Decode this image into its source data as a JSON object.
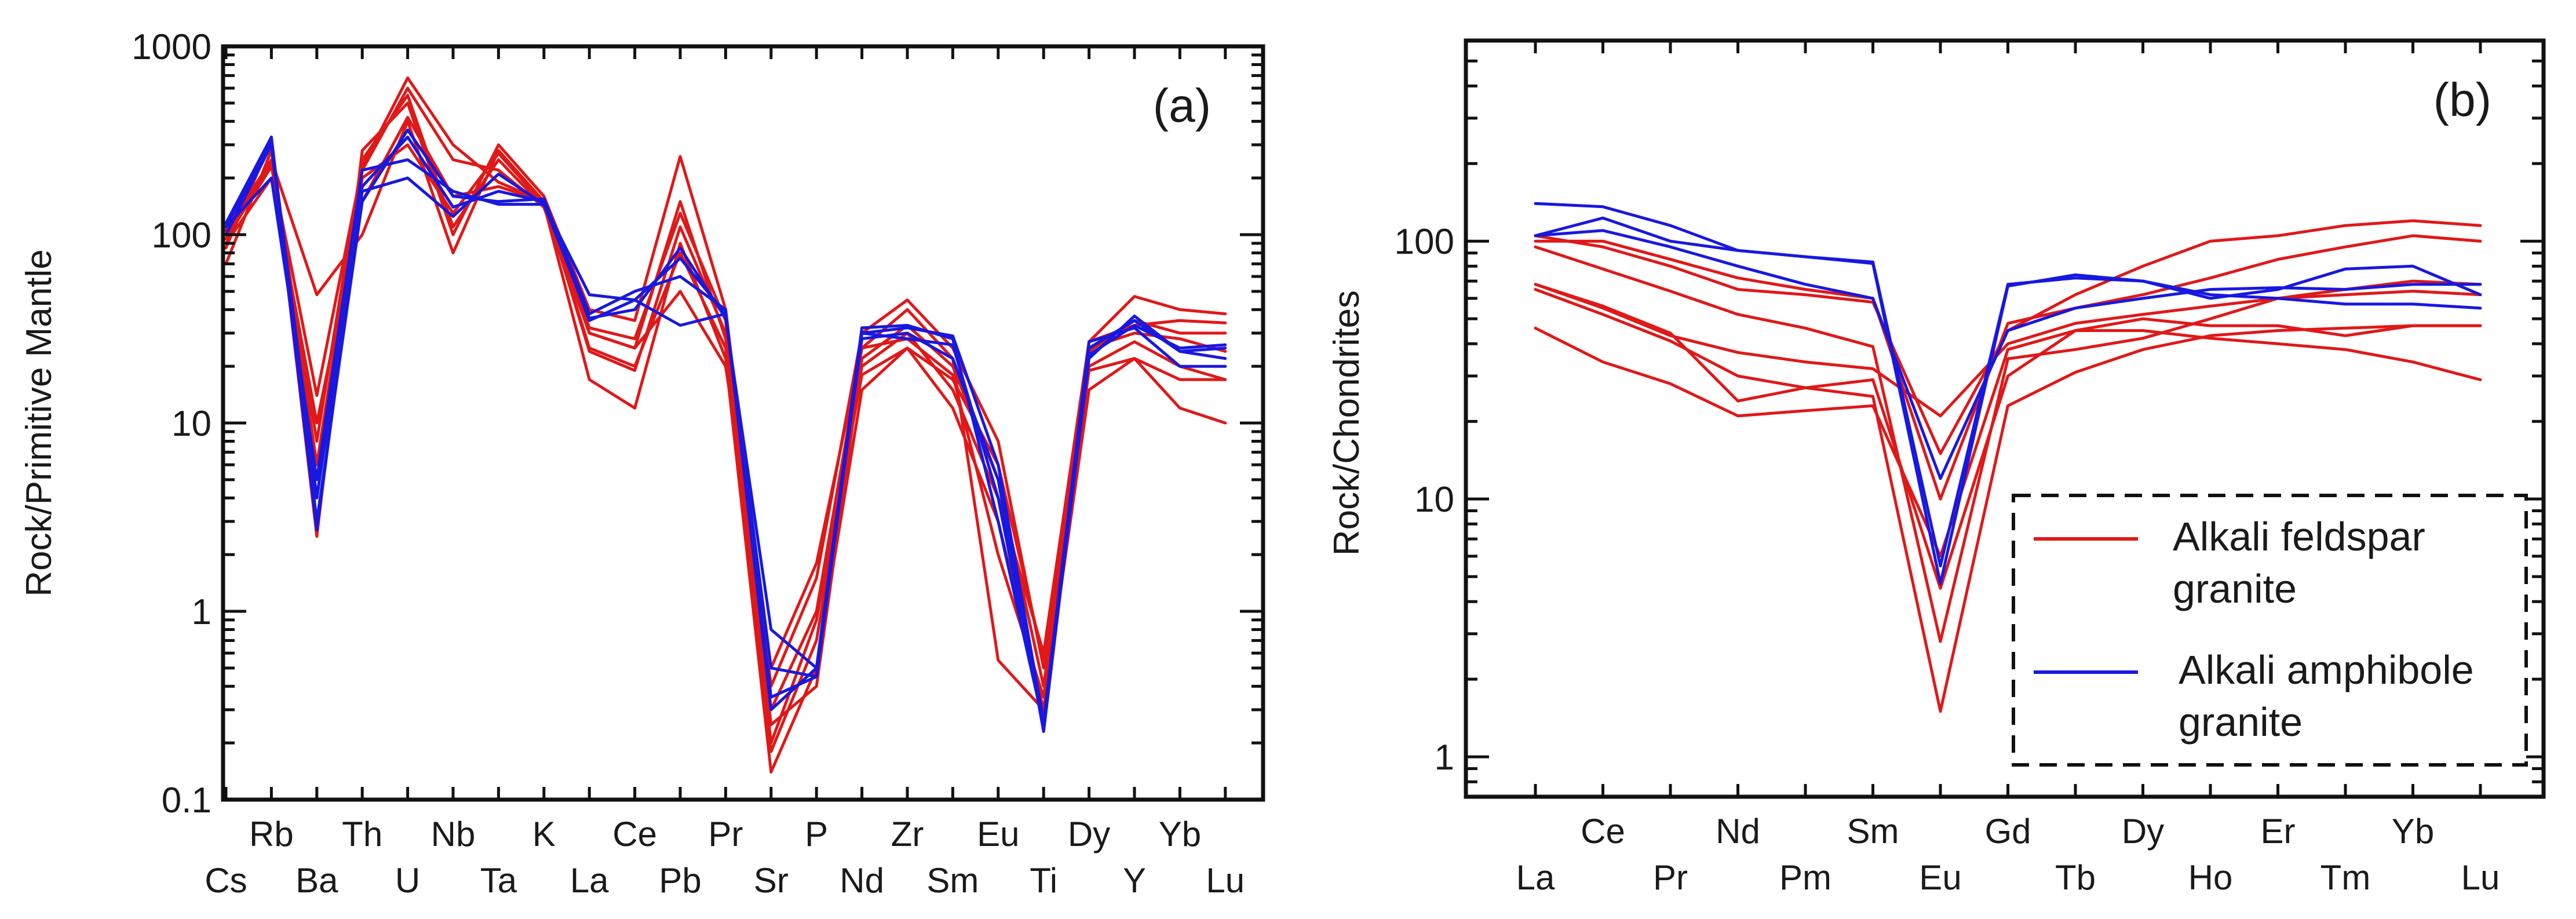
{
  "chart_data": [
    {
      "type": "line",
      "panel_label": "(a)",
      "ylabel": "Rock/Primitive Mantle",
      "yscale": "log",
      "ylim": [
        0.1,
        1000
      ],
      "yticks": [
        "0.1",
        "1",
        "10",
        "100",
        "1000"
      ],
      "categories": [
        "Cs",
        "Rb",
        "Ba",
        "Th",
        "U",
        "Nb",
        "Ta",
        "K",
        "La",
        "Ce",
        "Pb",
        "Pr",
        "Sr",
        "P",
        "Nd",
        "Zr",
        "Sm",
        "Eu",
        "Ti",
        "Dy",
        "Y",
        "Yb",
        "Lu"
      ],
      "series": [
        {
          "name": "Alkali feldspar granite 1",
          "color": "#e01818",
          "values": [
            95,
            230,
            14,
            230,
            680,
            300,
            190,
            150,
            24,
            19,
            110,
            30,
            0.18,
            0.7,
            20,
            30,
            15,
            4,
            0.6,
            27,
            47,
            40,
            38
          ]
        },
        {
          "name": "Alkali feldspar granite 2",
          "color": "#e01818",
          "values": [
            85,
            320,
            4,
            200,
            300,
            130,
            270,
            145,
            17,
            12,
            90,
            22,
            0.14,
            0.5,
            15,
            25,
            12,
            3,
            0.3,
            20,
            27,
            20,
            17
          ]
        },
        {
          "name": "Alkali feldspar granite 3",
          "color": "#e01818",
          "values": [
            110,
            300,
            2.5,
            280,
            500,
            100,
            300,
            160,
            40,
            35,
            260,
            40,
            0.4,
            1.5,
            30,
            45,
            25,
            8,
            0.5,
            25,
            30,
            28,
            24
          ]
        },
        {
          "name": "Alkali feldspar granite 4",
          "color": "#e01818",
          "values": [
            70,
            280,
            6,
            220,
            600,
            250,
            220,
            140,
            30,
            25,
            150,
            28,
            0.25,
            0.4,
            22,
            33,
            20,
            5,
            0.4,
            24,
            35,
            30,
            30
          ]
        },
        {
          "name": "Alkali feldspar granite 5",
          "color": "#e01818",
          "values": [
            90,
            200,
            10,
            150,
            420,
            160,
            180,
            150,
            25,
            20,
            80,
            25,
            0.3,
            1,
            25,
            28,
            18,
            2,
            0.35,
            19,
            22,
            12,
            10
          ]
        },
        {
          "name": "Alkali feldspar granite 6",
          "color": "#e01818",
          "values": [
            105,
            250,
            48,
            100,
            400,
            80,
            280,
            150,
            30,
            25,
            50,
            20,
            0.5,
            1.8,
            25,
            40,
            22,
            0.55,
            0.3,
            15,
            22,
            17,
            17
          ]
        },
        {
          "name": "Alkali feldspar granite 7",
          "color": "#e01818",
          "values": [
            100,
            240,
            8,
            250,
            550,
            110,
            250,
            140,
            32,
            28,
            130,
            35,
            0.2,
            0.9,
            18,
            25,
            17,
            6,
            0.55,
            27,
            33,
            35,
            34
          ]
        },
        {
          "name": "Alkali amphibole granite 1",
          "color": "#1818e0",
          "values": [
            115,
            330,
            3,
            150,
            360,
            160,
            150,
            155,
            38,
            50,
            60,
            40,
            0.3,
            0.5,
            32,
            33,
            28,
            3,
            0.25,
            22,
            37,
            24,
            22
          ]
        },
        {
          "name": "Alkali amphibole granite 2",
          "color": "#1818e0",
          "values": [
            100,
            300,
            2.7,
            180,
            330,
            140,
            170,
            150,
            35,
            45,
            75,
            38,
            0.5,
            0.45,
            30,
            28,
            26,
            4,
            0.24,
            25,
            35,
            24,
            25
          ]
        },
        {
          "name": "Alkali amphibole granite 3",
          "color": "#1818e0",
          "values": [
            110,
            200,
            5,
            220,
            250,
            170,
            145,
            145,
            36,
            40,
            85,
            36,
            0.8,
            0.5,
            28,
            30,
            22,
            5,
            0.23,
            23,
            33,
            25,
            26
          ]
        },
        {
          "name": "Alkali amphibole granite 4",
          "color": "#1818e0",
          "values": [
            110,
            310,
            4,
            170,
            200,
            125,
            210,
            145,
            48,
            45,
            33,
            38,
            0.35,
            0.45,
            30,
            32,
            29,
            6,
            0.26,
            27,
            32,
            20,
            20
          ]
        }
      ]
    },
    {
      "type": "line",
      "panel_label": "(b)",
      "ylabel": "Rock/Chondrites",
      "yscale": "log",
      "ylim": [
        0.7,
        600
      ],
      "yticks": [
        "1",
        "10",
        "100"
      ],
      "categories": [
        "La",
        "Ce",
        "Pr",
        "Nd",
        "Pm",
        "Sm",
        "Eu",
        "Gd",
        "Tb",
        "Dy",
        "Ho",
        "Er",
        "Tm",
        "Yb",
        "Lu"
      ],
      "series": [
        {
          "name": "Alkali feldspar granite 1",
          "color": "#e01818",
          "values": [
            95,
            78,
            64,
            52,
            46,
            39,
            2.8,
            35,
            38,
            42,
            50,
            60,
            65,
            70,
            68
          ]
        },
        {
          "name": "Alkali feldspar granite 2",
          "color": "#e01818",
          "values": [
            65,
            52,
            41,
            30,
            27,
            25,
            1.5,
            23,
            31,
            38,
            43,
            45,
            46,
            47,
            47
          ]
        },
        {
          "name": "Alkali feldspar granite 3",
          "color": "#e01818",
          "values": [
            46,
            34,
            28,
            21,
            22,
            23,
            6,
            38,
            45,
            45,
            42,
            40,
            38,
            34,
            29
          ]
        },
        {
          "name": "Alkali feldspar granite 4",
          "color": "#e01818",
          "values": [
            100,
            100,
            85,
            72,
            65,
            60,
            10,
            48,
            55,
            62,
            72,
            85,
            95,
            105,
            100
          ]
        },
        {
          "name": "Alkali feldspar granite 5",
          "color": "#e01818",
          "values": [
            105,
            95,
            80,
            65,
            62,
            58,
            15,
            45,
            62,
            80,
            100,
            105,
            115,
            120,
            115
          ]
        },
        {
          "name": "Alkali feldspar granite 6",
          "color": "#e01818",
          "values": [
            68,
            55,
            43,
            37,
            34,
            32,
            21,
            40,
            48,
            52,
            56,
            60,
            62,
            64,
            62
          ]
        },
        {
          "name": "Alkali feldspar granite 7",
          "color": "#e01818",
          "values": [
            68,
            56,
            44,
            24,
            27,
            29,
            4.5,
            30,
            45,
            50,
            47,
            47,
            43,
            47,
            47
          ]
        },
        {
          "name": "Alkali amphibole granite 1",
          "color": "#1818e0",
          "values": [
            140,
            136,
            115,
            92,
            87,
            83,
            5.5,
            68,
            72,
            70,
            62,
            60,
            57,
            57,
            55
          ]
        },
        {
          "name": "Alkali amphibole granite 2",
          "color": "#1818e0",
          "values": [
            105,
            123,
            100,
            92,
            87,
            82,
            4.7,
            67,
            74,
            70,
            60,
            65,
            78,
            80,
            62
          ]
        },
        {
          "name": "Alkali amphibole granite 3",
          "color": "#1818e0",
          "values": [
            105,
            110,
            95,
            80,
            68,
            60,
            12,
            45,
            55,
            60,
            65,
            66,
            65,
            68,
            68
          ]
        }
      ]
    }
  ],
  "legend": {
    "items": [
      {
        "label_line1": "Alkali feldspar",
        "label_line2": "granite",
        "color": "#e01818"
      },
      {
        "label_line1": "Alkali amphibole",
        "label_line2": "granite",
        "color": "#1818e0"
      }
    ]
  }
}
